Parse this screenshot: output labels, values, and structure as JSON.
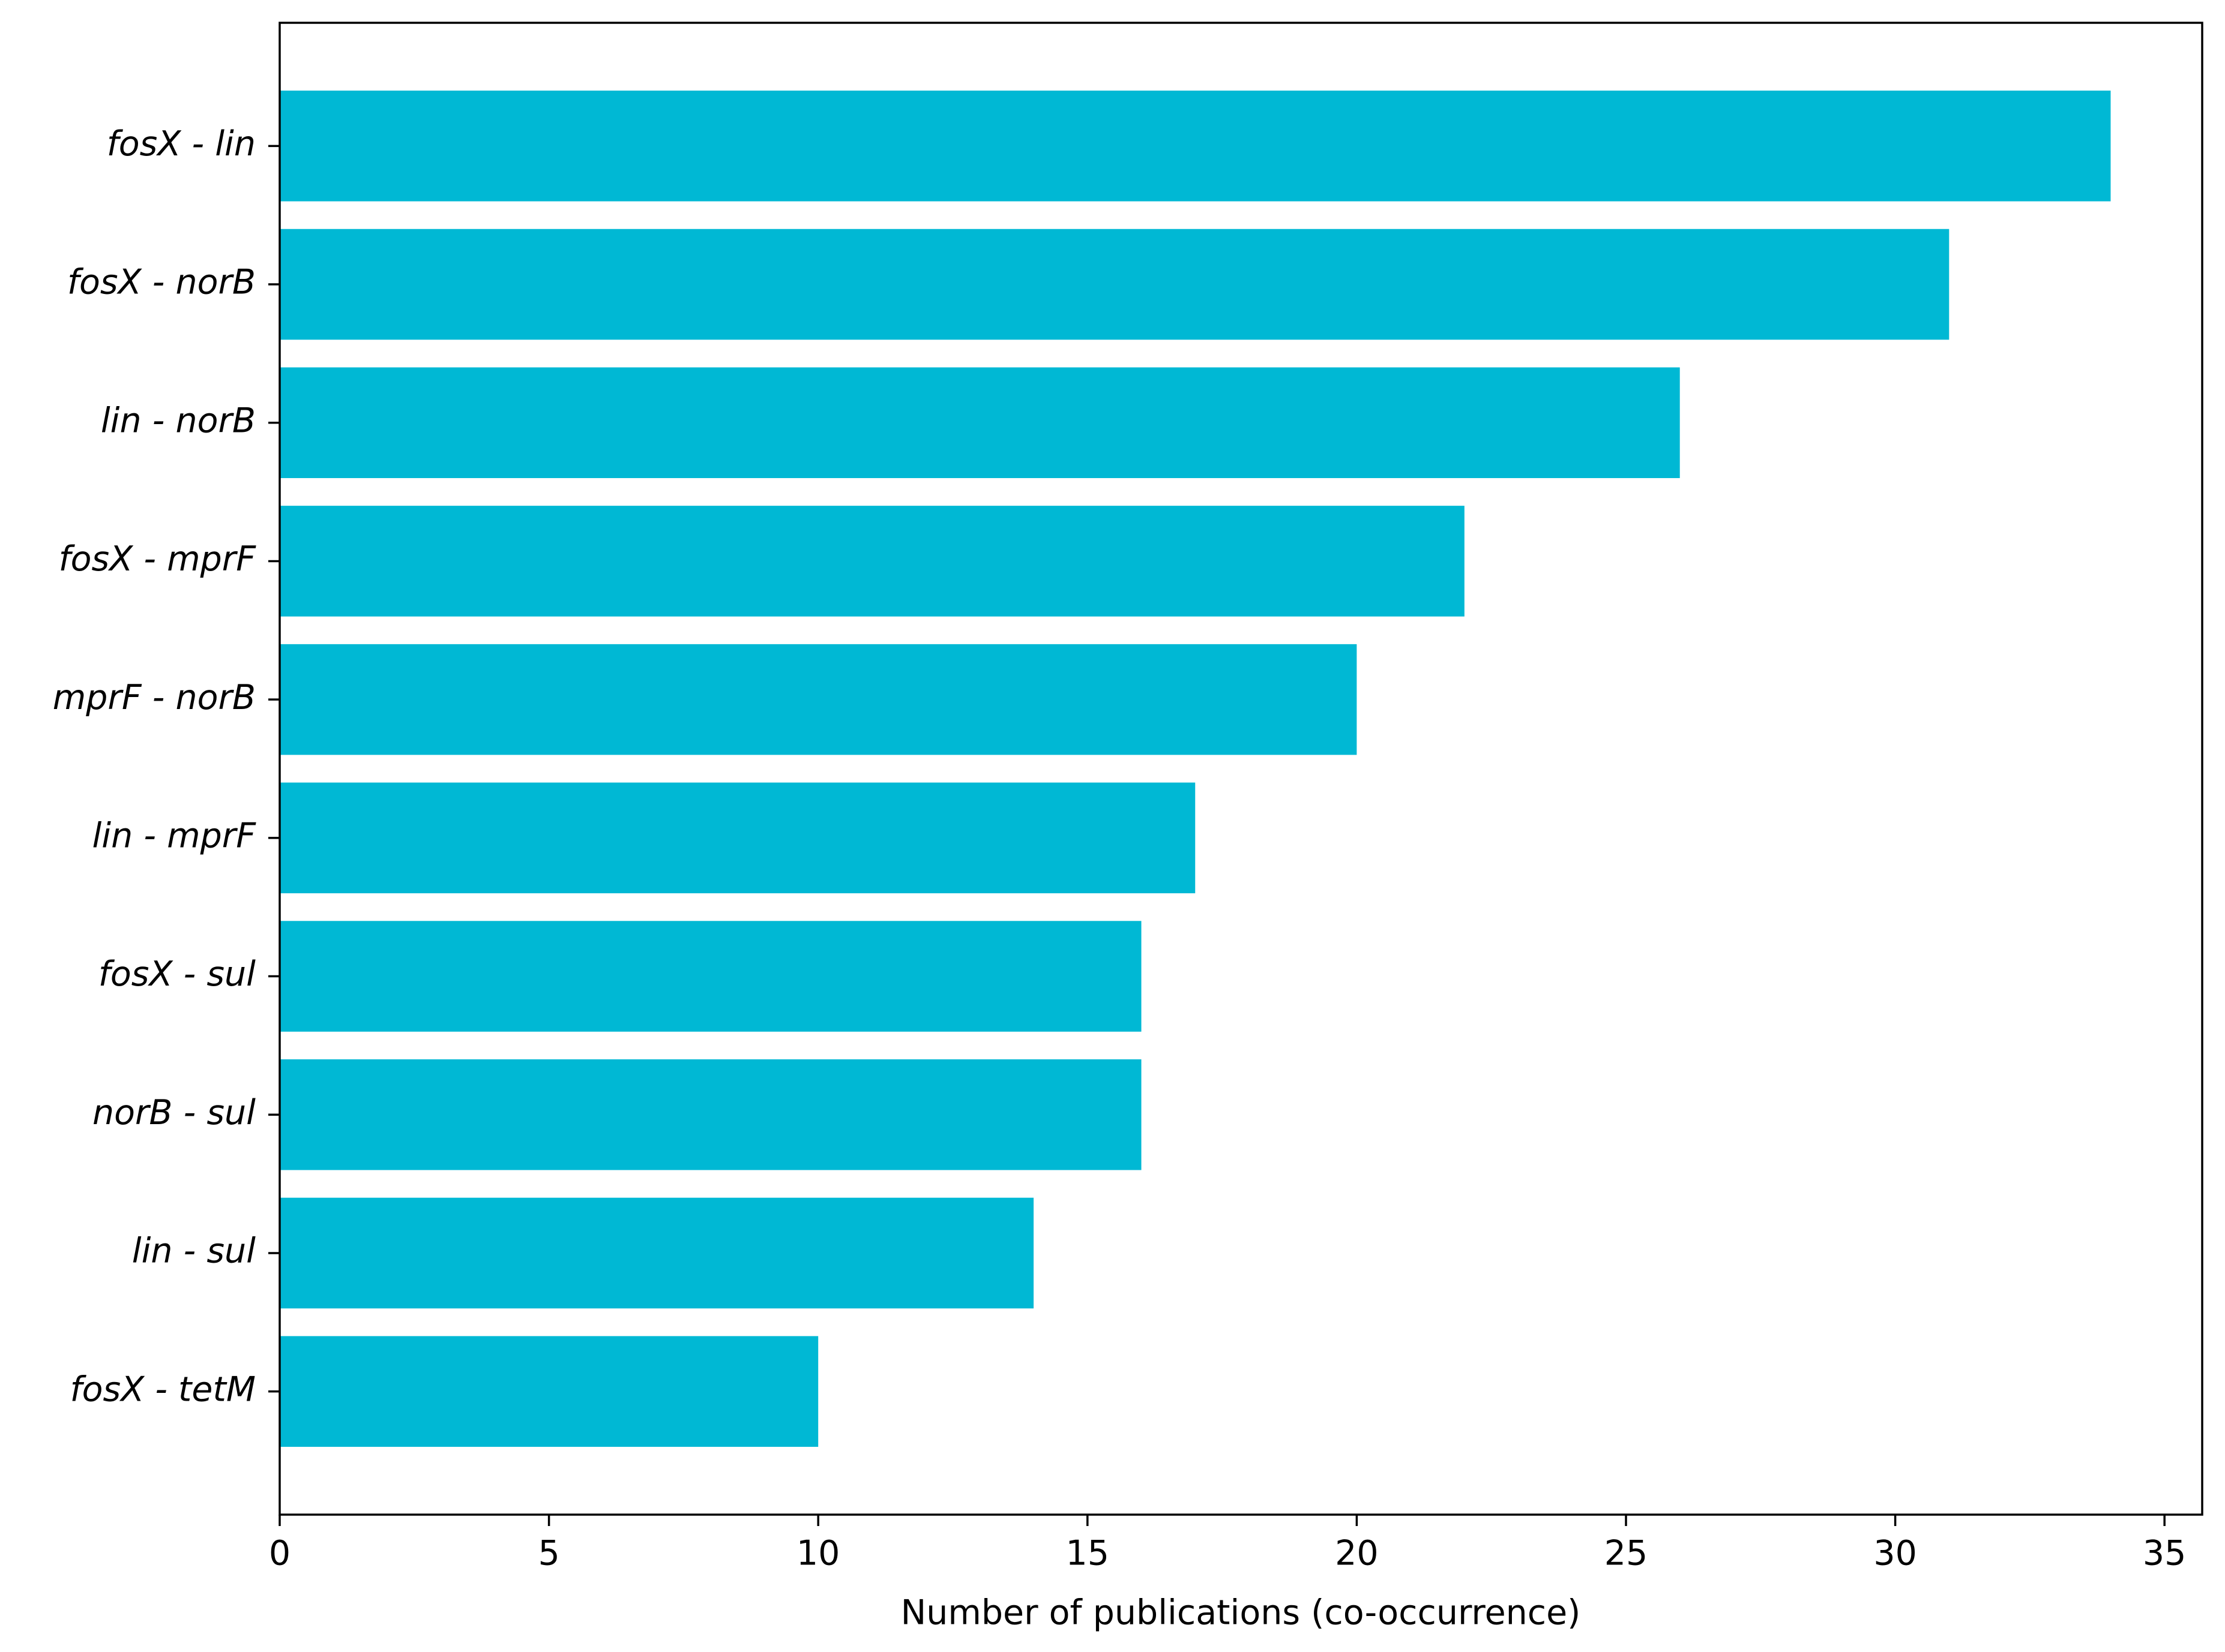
{
  "chart_data": {
    "type": "bar",
    "orientation": "horizontal",
    "x_label": "Number of publications (co-occurrence)",
    "categories": [
      "fosX - lin",
      "fosX - norB",
      "lin - norB",
      "fosX - mprF",
      "mprF - norB",
      "lin - mprF",
      "fosX - sul",
      "norB - sul",
      "lin - sul",
      "fosX - tetM"
    ],
    "values": [
      34,
      31,
      26,
      22,
      20,
      17,
      16,
      16,
      14,
      10
    ],
    "color": "#00b8d4",
    "xlim": [
      0,
      35.7
    ],
    "xticks": [
      0,
      5,
      10,
      15,
      20,
      25,
      30,
      35
    ],
    "grid": false
  }
}
